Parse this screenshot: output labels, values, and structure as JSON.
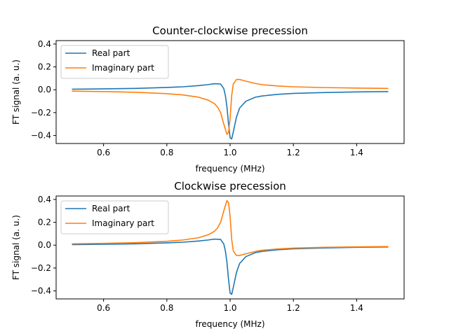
{
  "chart_data": [
    {
      "type": "line",
      "title": "Counter-clockwise precession",
      "xlabel": "frequency (MHz)",
      "ylabel": "FT signal (a. u.)",
      "xlim": [
        0.45,
        1.55
      ],
      "ylim": [
        -0.47,
        0.43
      ],
      "xticks": [
        "0.6",
        "0.8",
        "1.0",
        "1.2",
        "1.4"
      ],
      "yticks": [
        "-0.4",
        "-0.2",
        "0.0",
        "0.2",
        "0.4"
      ],
      "legend": "upper-left",
      "series": [
        {
          "name": "Real part",
          "color": "#1f77b4",
          "x": [
            0.5,
            0.6,
            0.7,
            0.8,
            0.85,
            0.9,
            0.93,
            0.95,
            0.97,
            0.98,
            0.985,
            0.99,
            0.995,
            1.0,
            1.005,
            1.01,
            1.02,
            1.03,
            1.05,
            1.08,
            1.1,
            1.15,
            1.2,
            1.3,
            1.4,
            1.5
          ],
          "y": [
            0.005,
            0.008,
            0.012,
            0.02,
            0.026,
            0.036,
            0.045,
            0.053,
            0.05,
            0.01,
            -0.05,
            -0.15,
            -0.3,
            -0.42,
            -0.43,
            -0.37,
            -0.24,
            -0.16,
            -0.1,
            -0.065,
            -0.055,
            -0.04,
            -0.032,
            -0.024,
            -0.019,
            -0.016
          ]
        },
        {
          "name": "Imaginary part",
          "color": "#ff7f0e",
          "x": [
            0.5,
            0.6,
            0.7,
            0.8,
            0.85,
            0.9,
            0.93,
            0.95,
            0.96,
            0.97,
            0.98,
            0.99,
            0.995,
            1.0,
            1.005,
            1.01,
            1.02,
            1.03,
            1.05,
            1.08,
            1.1,
            1.15,
            1.2,
            1.3,
            1.4,
            1.5
          ],
          "y": [
            -0.012,
            -0.016,
            -0.022,
            -0.034,
            -0.045,
            -0.065,
            -0.09,
            -0.12,
            -0.15,
            -0.2,
            -0.3,
            -0.39,
            -0.37,
            -0.25,
            -0.05,
            0.05,
            0.09,
            0.09,
            0.075,
            0.055,
            0.045,
            0.033,
            0.026,
            0.019,
            0.015,
            0.012
          ]
        }
      ]
    },
    {
      "type": "line",
      "title": "Clockwise precession",
      "xlabel": "frequency (MHz)",
      "ylabel": "FT signal (a. u.)",
      "xlim": [
        0.45,
        1.55
      ],
      "ylim": [
        -0.47,
        0.43
      ],
      "xticks": [
        "0.6",
        "0.8",
        "1.0",
        "1.2",
        "1.4"
      ],
      "yticks": [
        "-0.4",
        "-0.2",
        "0.0",
        "0.2",
        "0.4"
      ],
      "legend": "upper-left",
      "series": [
        {
          "name": "Real part",
          "color": "#1f77b4",
          "x": [
            0.5,
            0.6,
            0.7,
            0.8,
            0.85,
            0.9,
            0.93,
            0.95,
            0.97,
            0.98,
            0.985,
            0.99,
            0.995,
            1.0,
            1.005,
            1.01,
            1.02,
            1.03,
            1.05,
            1.08,
            1.1,
            1.15,
            1.2,
            1.3,
            1.4,
            1.5
          ],
          "y": [
            0.005,
            0.008,
            0.012,
            0.02,
            0.026,
            0.036,
            0.045,
            0.053,
            0.05,
            0.01,
            -0.05,
            -0.15,
            -0.3,
            -0.42,
            -0.43,
            -0.37,
            -0.24,
            -0.16,
            -0.1,
            -0.065,
            -0.055,
            -0.04,
            -0.032,
            -0.024,
            -0.019,
            -0.016
          ]
        },
        {
          "name": "Imaginary part",
          "color": "#ff7f0e",
          "x": [
            0.5,
            0.6,
            0.7,
            0.8,
            0.85,
            0.9,
            0.93,
            0.95,
            0.96,
            0.97,
            0.98,
            0.99,
            0.995,
            1.0,
            1.005,
            1.01,
            1.02,
            1.03,
            1.05,
            1.08,
            1.1,
            1.15,
            1.2,
            1.3,
            1.4,
            1.5
          ],
          "y": [
            0.012,
            0.016,
            0.022,
            0.034,
            0.045,
            0.065,
            0.09,
            0.12,
            0.15,
            0.2,
            0.3,
            0.39,
            0.37,
            0.25,
            0.05,
            -0.05,
            -0.09,
            -0.09,
            -0.075,
            -0.055,
            -0.045,
            -0.033,
            -0.026,
            -0.019,
            -0.015,
            -0.012
          ]
        }
      ]
    }
  ]
}
